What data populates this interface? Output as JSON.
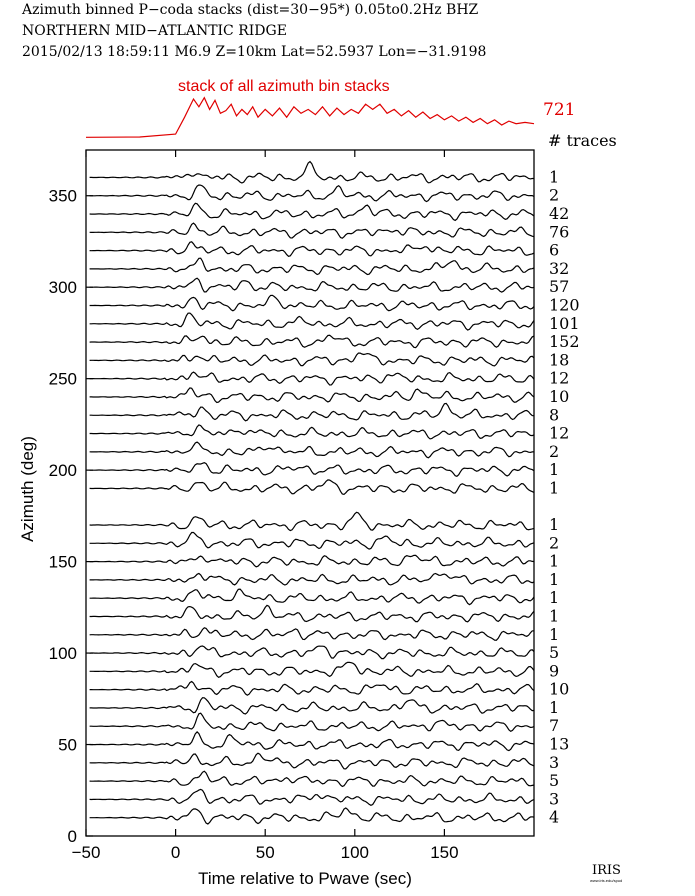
{
  "header": {
    "line1": "Azimuth binned P−coda stacks (dist=30−95*)  0.05to0.2Hz  BHZ",
    "line2": "NORTHERN MID−ATLANTIC RIDGE",
    "line3": "2015/02/13  18:59:11  M6.9  Z=10km Lat=52.5937 Lon=−31.9198"
  },
  "logo": {
    "text": "IRIS",
    "sub": "www.iris.edu/spud"
  },
  "colors": {
    "stack": "#e00000",
    "traces": "#000000"
  },
  "chart_data": {
    "type": "line",
    "xlabel": "Time relative to Pwave (sec)",
    "ylabel": "Azimuth (deg)",
    "xlim": [
      -50,
      200
    ],
    "ylim": [
      0,
      375
    ],
    "x_ticks": [
      -50,
      0,
      50,
      100,
      150
    ],
    "y_ticks": [
      0,
      50,
      100,
      150,
      200,
      250,
      300,
      350
    ],
    "stack": {
      "label": "stack of all azimuth bin stacks",
      "count": "721",
      "points": [
        [
          -50,
          0.05
        ],
        [
          -20,
          0.08
        ],
        [
          0,
          0.3
        ],
        [
          5,
          1.6
        ],
        [
          10,
          3.0
        ],
        [
          13,
          2.4
        ],
        [
          16,
          3.1
        ],
        [
          19,
          2.2
        ],
        [
          22,
          2.9
        ],
        [
          25,
          1.9
        ],
        [
          28,
          2.1
        ],
        [
          31,
          2.6
        ],
        [
          34,
          1.7
        ],
        [
          37,
          2.2
        ],
        [
          40,
          1.8
        ],
        [
          43,
          2.4
        ],
        [
          46,
          1.6
        ],
        [
          50,
          2.2
        ],
        [
          54,
          1.7
        ],
        [
          58,
          2.3
        ],
        [
          62,
          1.6
        ],
        [
          66,
          2.4
        ],
        [
          70,
          1.9
        ],
        [
          74,
          2.2
        ],
        [
          78,
          1.8
        ],
        [
          82,
          2.4
        ],
        [
          86,
          1.7
        ],
        [
          90,
          2.3
        ],
        [
          94,
          1.8
        ],
        [
          98,
          2.2
        ],
        [
          102,
          1.9
        ],
        [
          106,
          2.6
        ],
        [
          110,
          2.2
        ],
        [
          114,
          2.6
        ],
        [
          118,
          1.9
        ],
        [
          122,
          2.2
        ],
        [
          126,
          1.7
        ],
        [
          130,
          2.1
        ],
        [
          134,
          1.6
        ],
        [
          138,
          2.0
        ],
        [
          142,
          1.5
        ],
        [
          146,
          1.8
        ],
        [
          150,
          1.4
        ],
        [
          154,
          1.7
        ],
        [
          158,
          1.3
        ],
        [
          162,
          1.6
        ],
        [
          166,
          1.2
        ],
        [
          170,
          1.5
        ],
        [
          174,
          1.1
        ],
        [
          178,
          1.4
        ],
        [
          182,
          1.0
        ],
        [
          186,
          1.3
        ],
        [
          190,
          1.1
        ],
        [
          195,
          1.2
        ],
        [
          200,
          1.1
        ]
      ]
    },
    "counts_header": "# traces",
    "traces": [
      {
        "azimuth": 360,
        "count": "1"
      },
      {
        "azimuth": 350,
        "count": "2"
      },
      {
        "azimuth": 340,
        "count": "42"
      },
      {
        "azimuth": 330,
        "count": "76"
      },
      {
        "azimuth": 320,
        "count": "6"
      },
      {
        "azimuth": 310,
        "count": "32"
      },
      {
        "azimuth": 300,
        "count": "57"
      },
      {
        "azimuth": 290,
        "count": "120"
      },
      {
        "azimuth": 280,
        "count": "101"
      },
      {
        "azimuth": 270,
        "count": "152"
      },
      {
        "azimuth": 260,
        "count": "18"
      },
      {
        "azimuth": 250,
        "count": "12"
      },
      {
        "azimuth": 240,
        "count": "10"
      },
      {
        "azimuth": 230,
        "count": "8"
      },
      {
        "azimuth": 220,
        "count": "12"
      },
      {
        "azimuth": 210,
        "count": "2"
      },
      {
        "azimuth": 200,
        "count": "1"
      },
      {
        "azimuth": 190,
        "count": "1"
      },
      {
        "azimuth": 170,
        "count": "1"
      },
      {
        "azimuth": 160,
        "count": "2"
      },
      {
        "azimuth": 150,
        "count": "1"
      },
      {
        "azimuth": 140,
        "count": "1"
      },
      {
        "azimuth": 130,
        "count": "1"
      },
      {
        "azimuth": 120,
        "count": "1"
      },
      {
        "azimuth": 110,
        "count": "1"
      },
      {
        "azimuth": 100,
        "count": "5"
      },
      {
        "azimuth": 90,
        "count": "9"
      },
      {
        "azimuth": 80,
        "count": "10"
      },
      {
        "azimuth": 70,
        "count": "1"
      },
      {
        "azimuth": 60,
        "count": "7"
      },
      {
        "azimuth": 50,
        "count": "13"
      },
      {
        "azimuth": 40,
        "count": "3"
      },
      {
        "azimuth": 30,
        "count": "5"
      },
      {
        "azimuth": 20,
        "count": "3"
      },
      {
        "azimuth": 10,
        "count": "4"
      }
    ]
  }
}
